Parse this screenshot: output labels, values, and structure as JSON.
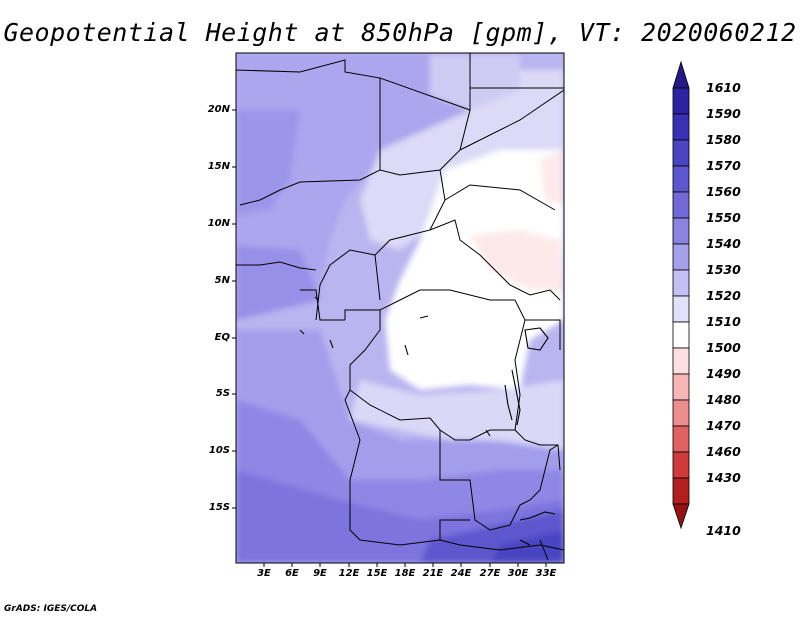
{
  "title": "Geopotential Height at 850hPa [gpm], VT: 2020060212",
  "lat_labels": [
    "20N",
    "15N",
    "10N",
    "5N",
    "EQ",
    "5S",
    "10S",
    "15S"
  ],
  "lon_labels": [
    "3E",
    "6E",
    "9E",
    "12E",
    "15E",
    "18E",
    "21E",
    "24E",
    "27E",
    "30E",
    "33E"
  ],
  "colorbar": {
    "levels": [
      "1610",
      "1590",
      "1580",
      "1570",
      "1560",
      "1550",
      "1540",
      "1530",
      "1520",
      "1510",
      "1500",
      "1490",
      "1480",
      "1470",
      "1460",
      "1430",
      "1410"
    ],
    "colors": [
      "#241a86",
      "#2c23a0",
      "#3831b4",
      "#4a44c2",
      "#5d57cd",
      "#7069d6",
      "#8a83e0",
      "#a5a0ea",
      "#c4c1f2",
      "#e2e1f9",
      "#ffffff",
      "#fce0e0",
      "#f5b6b6",
      "#ec8e8e",
      "#e06262",
      "#cf3b3b",
      "#b21f1f",
      "#931313"
    ]
  },
  "credit": "GrADS: IGES/COLA"
}
